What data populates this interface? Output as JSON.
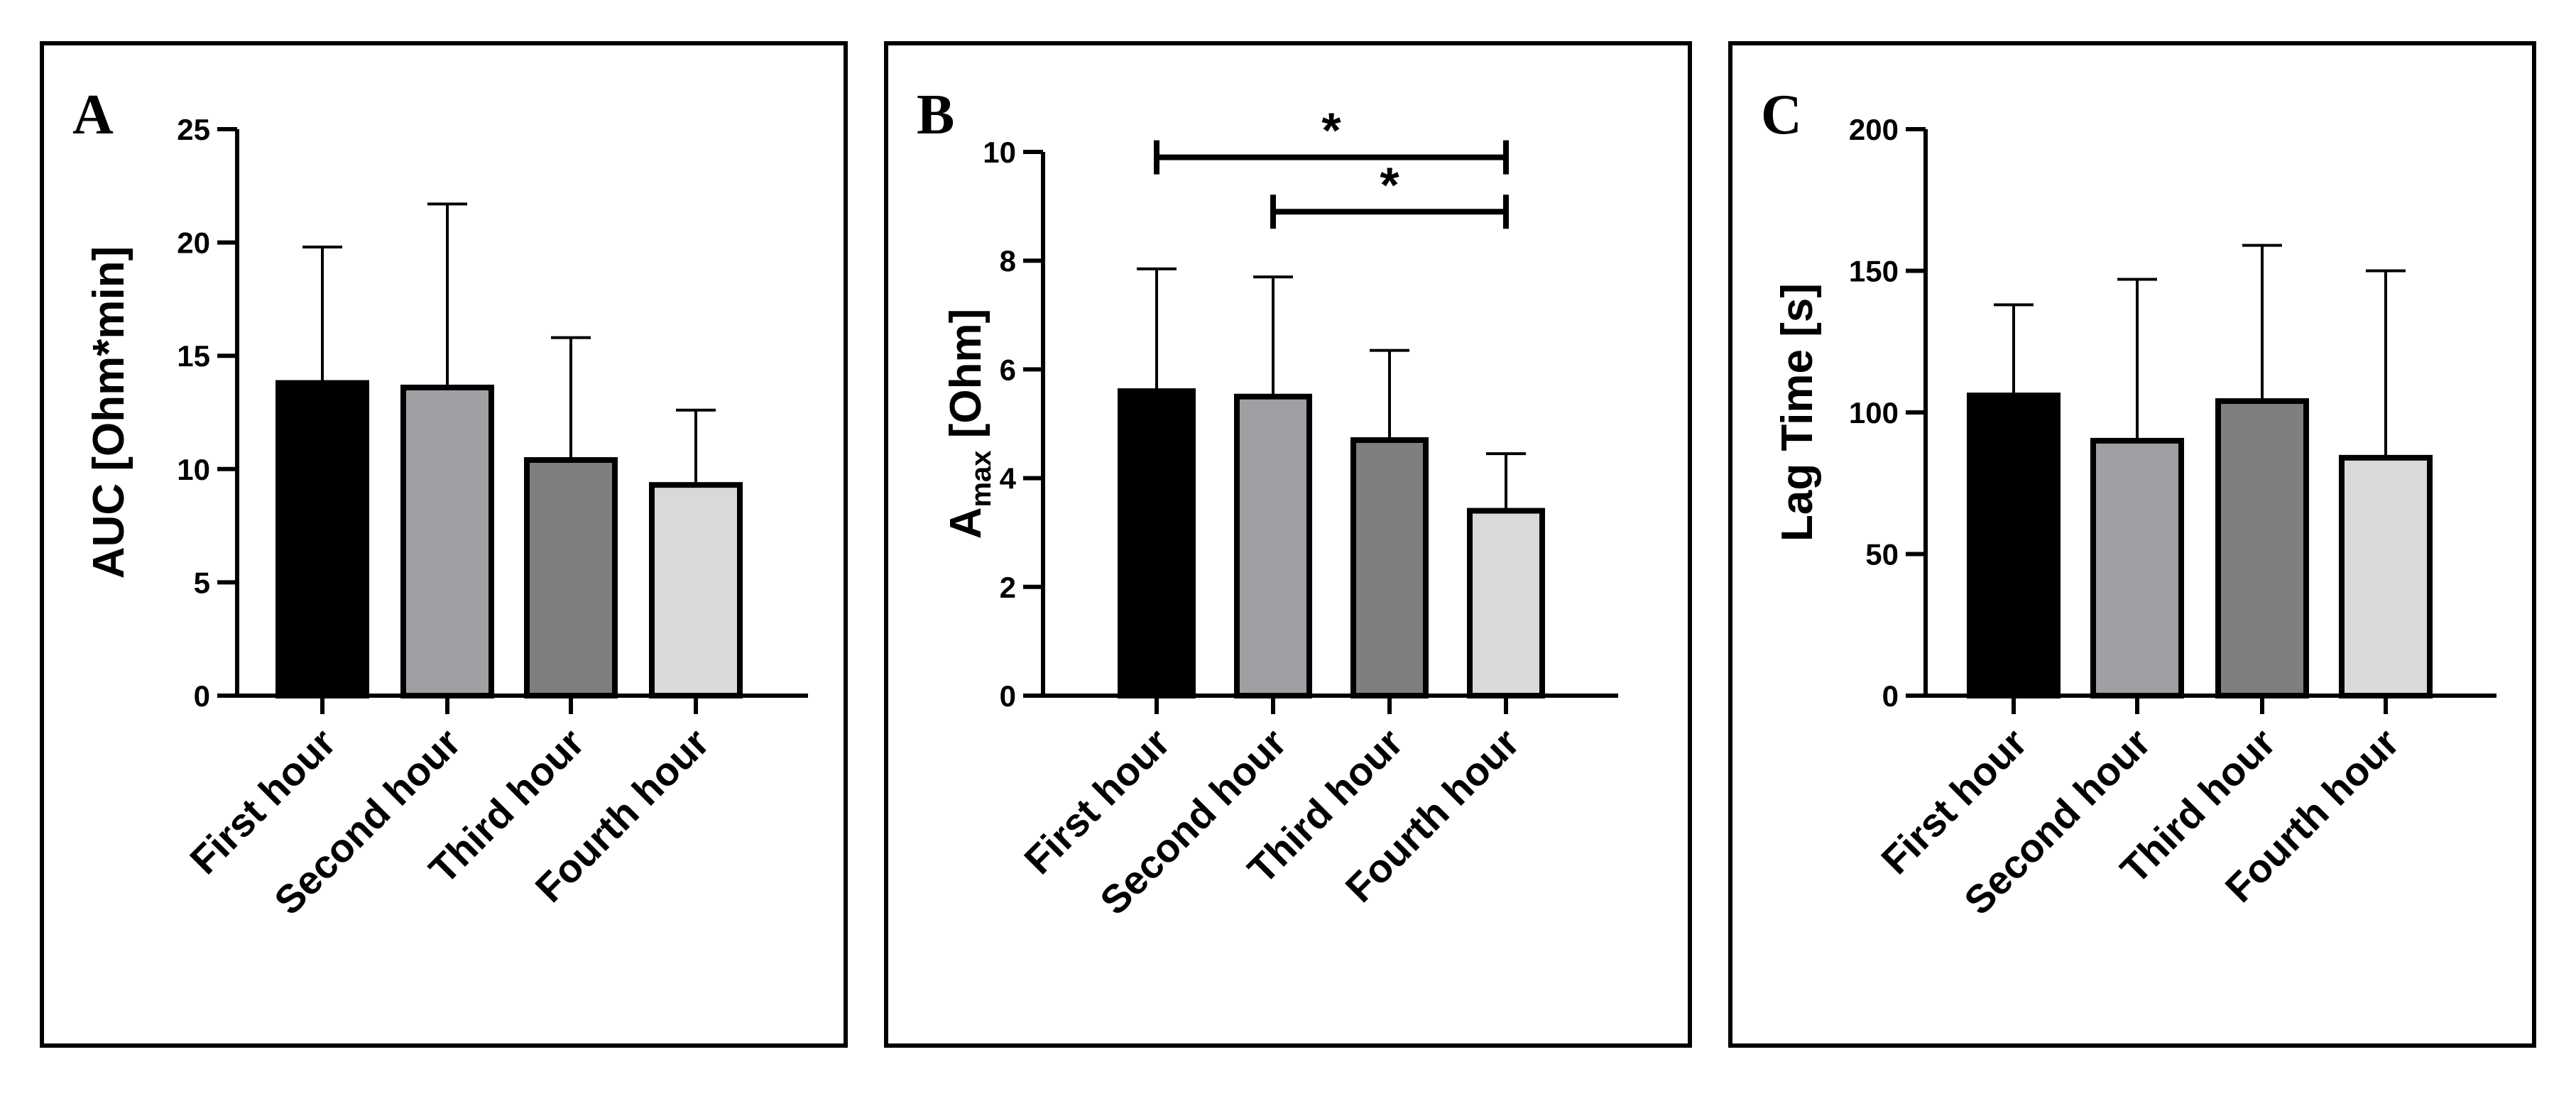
{
  "chart_data": [
    {
      "type": "bar",
      "panel": "A",
      "categories": [
        "First hour",
        "Second hour",
        "Third hour",
        "Fourth hour"
      ],
      "values": [
        13.8,
        13.6,
        10.4,
        9.3
      ],
      "errors": [
        6.0,
        8.1,
        5.4,
        3.3
      ],
      "ylabel": "AUC [Ohm*min]",
      "ylabel_sub": "",
      "ylabel_rest": "",
      "ylim": [
        0,
        25
      ],
      "yticks": [
        0,
        5,
        10,
        15,
        20,
        25
      ],
      "bar_colors": [
        "#000000",
        "#a19fa3",
        "#7f7f7f",
        "#d9d9d9"
      ],
      "significance": []
    },
    {
      "type": "bar",
      "panel": "B",
      "categories": [
        "First hour",
        "Second hour",
        "Third hour",
        "Fourth hour"
      ],
      "values": [
        5.6,
        5.5,
        4.7,
        3.4
      ],
      "errors": [
        2.25,
        2.2,
        1.65,
        1.05
      ],
      "ylabel": "A",
      "ylabel_sub": "max",
      "ylabel_rest": " [Ohm]",
      "ylim": [
        0,
        10
      ],
      "yticks": [
        0,
        2,
        4,
        6,
        8,
        10
      ],
      "bar_colors": [
        "#000000",
        "#a19fa3",
        "#7f7f7f",
        "#d9d9d9"
      ],
      "significance": [
        {
          "from": 0,
          "to": 3,
          "level": 9.9,
          "label": "*"
        },
        {
          "from": 1,
          "to": 3,
          "level": 8.9,
          "label": "*"
        }
      ]
    },
    {
      "type": "bar",
      "panel": "C",
      "categories": [
        "First hour",
        "Second hour",
        "Third hour",
        "Fourth hour"
      ],
      "values": [
        106,
        90,
        104,
        84
      ],
      "errors": [
        32,
        57,
        55,
        66
      ],
      "ylabel": "Lag Time [s]",
      "ylabel_sub": "",
      "ylabel_rest": "",
      "ylim": [
        0,
        200
      ],
      "yticks": [
        0,
        50,
        100,
        150,
        200
      ],
      "bar_colors": [
        "#000000",
        "#a19fa3",
        "#7f7f7f",
        "#d9d9d9"
      ],
      "significance": []
    }
  ]
}
